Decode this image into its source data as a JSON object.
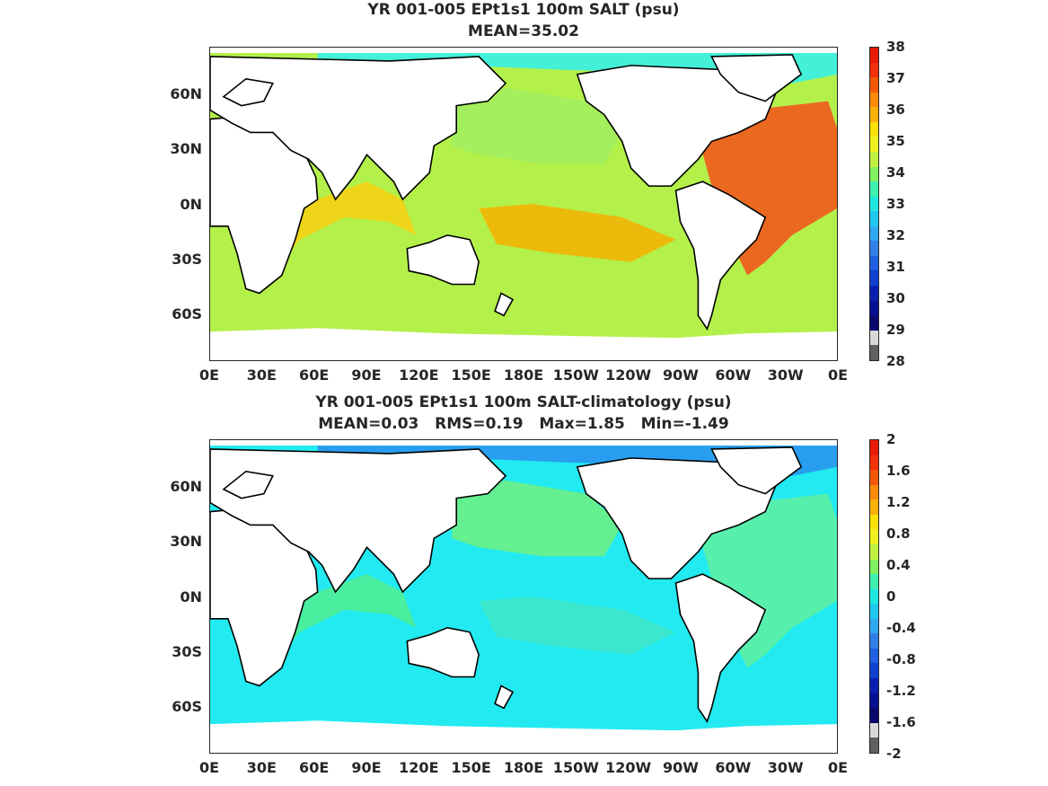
{
  "panels": [
    {
      "title": "YR 001-005 EPt1s1 100m SALT (psu)",
      "subtitle": "MEAN=35.02",
      "ocean_color": "#b4f04a",
      "colorbar": {
        "ticks": [
          "38",
          "37",
          "36",
          "35",
          "34",
          "33",
          "32",
          "31",
          "30",
          "29",
          "28"
        ],
        "colors": [
          "#e81a0a",
          "#f2300a",
          "#f6580a",
          "#fa8a0a",
          "#fcb00a",
          "#fce00a",
          "#f0f020",
          "#c0f040",
          "#80f060",
          "#40f0b0",
          "#20e8e0",
          "#20c8f0",
          "#30a8f0",
          "#3080e8",
          "#2060e0",
          "#1040d0",
          "#0820b0",
          "#061090",
          "#080870",
          "#d8d8d8",
          "#606060"
        ]
      },
      "regions": {
        "atlantic": "#f4501a",
        "indian": "#f8d010",
        "pacific_band": "#f6b000",
        "arctic": "#30f0f0",
        "northpac": "#a0ee60"
      }
    },
    {
      "title": "YR 001-005 EPt1s1 100m SALT-climatology (psu)",
      "subtitle": "MEAN=0.03   RMS=0.19   Max=1.85   Min=-1.49",
      "ocean_color": "#22eaf0",
      "colorbar": {
        "ticks": [
          "2",
          "1.6",
          "1.2",
          "0.8",
          "0.4",
          "0",
          "-0.4",
          "-0.8",
          "-1.2",
          "-1.6",
          "-2"
        ],
        "colors": [
          "#e81a0a",
          "#f2300a",
          "#f6580a",
          "#fa8a0a",
          "#fcb00a",
          "#fce00a",
          "#f0f020",
          "#c0f040",
          "#80f060",
          "#40f0b0",
          "#20e8e0",
          "#20c8f0",
          "#30a8f0",
          "#3080e8",
          "#2060e0",
          "#1040d0",
          "#0820b0",
          "#061090",
          "#080870",
          "#d8d8d8",
          "#606060"
        ]
      },
      "regions": {
        "atlantic": "#60f0a0",
        "indian": "#50ee90",
        "pacific_band": "#40e8c8",
        "arctic": "#2a90f0",
        "northpac": "#70f080"
      }
    }
  ],
  "x_ticks": [
    "0E",
    "30E",
    "60E",
    "90E",
    "120E",
    "150E",
    "180E",
    "150W",
    "120W",
    "90W",
    "60W",
    "30W",
    "0E"
  ],
  "y_ticks": [
    "60N",
    "30N",
    "0N",
    "30S",
    "60S"
  ],
  "land_color": "#ffffff",
  "coast_color": "#000000"
}
